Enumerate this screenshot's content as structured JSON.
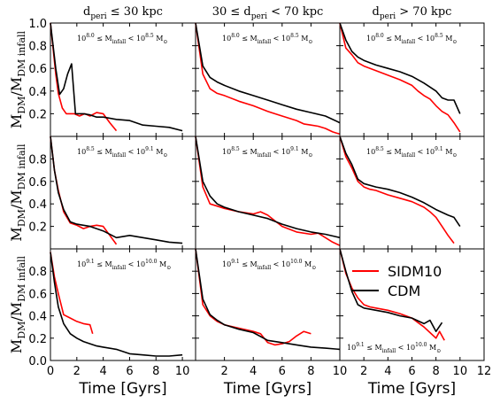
{
  "figure": {
    "xlabel": "Time [Gyrs]",
    "ylabel_main": "M",
    "ylabel_sub1": "DM",
    "ylabel_slash": "/M",
    "ylabel_sub2": "DM infall",
    "legend": [
      {
        "label": "SIDM10",
        "color": "#ff0000"
      },
      {
        "label": "CDM",
        "color": "#000000"
      }
    ]
  },
  "chart_data": {
    "type": "line",
    "layout": "3x3 grid",
    "xlim": [
      0,
      12
    ],
    "ylim": [
      0,
      1.0
    ],
    "columns": [
      {
        "pre": "d",
        "sub": "peri",
        "post": " ≤ 30 kpc"
      },
      {
        "pre": "30 ≤ d",
        "sub": "peri",
        "post": " < 70 kpc"
      },
      {
        "pre": "d",
        "sub": "peri",
        "post": " > 70 kpc"
      }
    ],
    "rows": [
      {
        "lo": "10",
        "lo_exp": "8.0",
        "hi": "10",
        "hi_exp": "8.5",
        "left_yticks": [
          "0.2",
          "0.4",
          "0.6",
          "0.8",
          "1.0"
        ]
      },
      {
        "lo": "10",
        "lo_exp": "8.5",
        "hi": "10",
        "hi_exp": "9.1",
        "left_yticks": [
          "0.2",
          "0.4",
          "0.6",
          "0.8"
        ]
      },
      {
        "lo": "10",
        "lo_exp": "9.1",
        "hi": "10",
        "hi_exp": "10.0",
        "left_yticks": [
          "0.0",
          "0.2",
          "0.4",
          "0.6",
          "0.8"
        ]
      }
    ],
    "mass_label": {
      "sep": " ≤ M",
      "sub": "infall",
      "mid": " < ",
      "unit": " M",
      "unit_sub": "⊙"
    },
    "xticks_by_column": [
      [
        "0",
        "2",
        "4",
        "6",
        "8",
        "10"
      ],
      [
        "2",
        "4",
        "6",
        "8",
        "10"
      ],
      [
        "2",
        "4",
        "6",
        "8",
        "10",
        "12"
      ]
    ],
    "series": [
      {
        "name": "SIDM10",
        "color": "#ff0000",
        "panels": [
          [
            [
              0,
              1.0
            ],
            [
              0.4,
              0.55
            ],
            [
              0.6,
              0.38
            ],
            [
              0.9,
              0.25
            ],
            [
              1.2,
              0.2
            ],
            [
              1.8,
              0.2
            ],
            [
              2.2,
              0.18
            ],
            [
              2.6,
              0.2
            ],
            [
              3.0,
              0.18
            ],
            [
              3.5,
              0.21
            ],
            [
              4.0,
              0.2
            ],
            [
              4.5,
              0.12
            ],
            [
              5.0,
              0.05
            ]
          ],
          [
            [
              0,
              1.0
            ],
            [
              0.5,
              0.55
            ],
            [
              1.0,
              0.42
            ],
            [
              1.5,
              0.38
            ],
            [
              2.0,
              0.36
            ],
            [
              3.0,
              0.31
            ],
            [
              4.0,
              0.27
            ],
            [
              5.0,
              0.22
            ],
            [
              6.0,
              0.18
            ],
            [
              7.0,
              0.14
            ],
            [
              7.5,
              0.11
            ],
            [
              8.0,
              0.1
            ],
            [
              8.5,
              0.09
            ],
            [
              9.0,
              0.07
            ],
            [
              9.5,
              0.04
            ],
            [
              10.0,
              0.02
            ]
          ],
          [
            [
              0,
              1.0
            ],
            [
              0.5,
              0.78
            ],
            [
              1.0,
              0.72
            ],
            [
              1.5,
              0.65
            ],
            [
              2.0,
              0.62
            ],
            [
              3.0,
              0.58
            ],
            [
              4.0,
              0.54
            ],
            [
              5.0,
              0.5
            ],
            [
              6.0,
              0.45
            ],
            [
              6.5,
              0.4
            ],
            [
              7.0,
              0.36
            ],
            [
              7.5,
              0.33
            ],
            [
              8.0,
              0.27
            ],
            [
              8.5,
              0.22
            ],
            [
              9.0,
              0.19
            ],
            [
              9.5,
              0.12
            ],
            [
              10.0,
              0.04
            ]
          ],
          [
            [
              0,
              1.0
            ],
            [
              0.3,
              0.7
            ],
            [
              0.6,
              0.52
            ],
            [
              1.0,
              0.33
            ],
            [
              1.5,
              0.23
            ],
            [
              2.0,
              0.21
            ],
            [
              2.5,
              0.18
            ],
            [
              3.0,
              0.2
            ],
            [
              3.5,
              0.21
            ],
            [
              4.0,
              0.2
            ],
            [
              4.5,
              0.12
            ],
            [
              5.0,
              0.04
            ]
          ],
          [
            [
              0,
              1.0
            ],
            [
              0.5,
              0.55
            ],
            [
              1.0,
              0.4
            ],
            [
              1.5,
              0.38
            ],
            [
              2.0,
              0.36
            ],
            [
              3.0,
              0.33
            ],
            [
              4.0,
              0.31
            ],
            [
              4.5,
              0.33
            ],
            [
              5.0,
              0.3
            ],
            [
              5.5,
              0.25
            ],
            [
              6.0,
              0.2
            ],
            [
              7.0,
              0.15
            ],
            [
              8.0,
              0.13
            ],
            [
              8.5,
              0.14
            ],
            [
              9.0,
              0.1
            ],
            [
              9.5,
              0.06
            ],
            [
              10.0,
              0.03
            ]
          ],
          [
            [
              0,
              1.0
            ],
            [
              0.5,
              0.82
            ],
            [
              1.0,
              0.72
            ],
            [
              1.5,
              0.6
            ],
            [
              2.0,
              0.55
            ],
            [
              2.5,
              0.53
            ],
            [
              3.0,
              0.52
            ],
            [
              4.0,
              0.48
            ],
            [
              5.0,
              0.45
            ],
            [
              6.0,
              0.42
            ],
            [
              7.0,
              0.37
            ],
            [
              7.5,
              0.33
            ],
            [
              8.0,
              0.28
            ],
            [
              8.5,
              0.2
            ],
            [
              9.0,
              0.12
            ],
            [
              9.5,
              0.05
            ]
          ],
          [
            [
              0,
              0.97
            ],
            [
              0.3,
              0.75
            ],
            [
              0.6,
              0.6
            ],
            [
              1.0,
              0.41
            ],
            [
              1.5,
              0.38
            ],
            [
              2.0,
              0.35
            ],
            [
              2.5,
              0.33
            ],
            [
              3.0,
              0.32
            ],
            [
              3.2,
              0.24
            ]
          ],
          [
            [
              0,
              1.0
            ],
            [
              0.5,
              0.5
            ],
            [
              1.0,
              0.4
            ],
            [
              1.5,
              0.35
            ],
            [
              2.0,
              0.32
            ],
            [
              3.0,
              0.29
            ],
            [
              4.0,
              0.26
            ],
            [
              4.5,
              0.24
            ],
            [
              5.0,
              0.16
            ],
            [
              5.5,
              0.14
            ],
            [
              6.0,
              0.15
            ],
            [
              6.5,
              0.17
            ],
            [
              7.0,
              0.22
            ],
            [
              7.5,
              0.26
            ],
            [
              8.0,
              0.24
            ]
          ],
          [
            [
              0,
              1.0
            ],
            [
              0.5,
              0.78
            ],
            [
              1.0,
              0.65
            ],
            [
              1.5,
              0.56
            ],
            [
              2.0,
              0.5
            ],
            [
              2.5,
              0.48
            ],
            [
              3.0,
              0.47
            ],
            [
              4.0,
              0.45
            ],
            [
              5.0,
              0.42
            ],
            [
              6.0,
              0.38
            ],
            [
              6.5,
              0.34
            ],
            [
              7.0,
              0.3
            ],
            [
              7.5,
              0.25
            ],
            [
              8.0,
              0.2
            ],
            [
              8.3,
              0.26
            ],
            [
              8.7,
              0.18
            ]
          ]
        ]
      },
      {
        "name": "CDM",
        "color": "#000000",
        "panels": [
          [
            [
              0,
              1.0
            ],
            [
              0.4,
              0.6
            ],
            [
              0.7,
              0.37
            ],
            [
              1.0,
              0.42
            ],
            [
              1.3,
              0.55
            ],
            [
              1.6,
              0.64
            ],
            [
              1.9,
              0.2
            ],
            [
              2.5,
              0.2
            ],
            [
              3.0,
              0.19
            ],
            [
              3.5,
              0.17
            ],
            [
              4.0,
              0.17
            ],
            [
              5.0,
              0.15
            ],
            [
              6.0,
              0.14
            ],
            [
              7.0,
              0.1
            ],
            [
              8.0,
              0.09
            ],
            [
              9.0,
              0.08
            ],
            [
              10.0,
              0.05
            ]
          ],
          [
            [
              0,
              1.0
            ],
            [
              0.5,
              0.62
            ],
            [
              1.0,
              0.52
            ],
            [
              1.5,
              0.48
            ],
            [
              2.0,
              0.45
            ],
            [
              3.0,
              0.4
            ],
            [
              4.0,
              0.36
            ],
            [
              5.0,
              0.32
            ],
            [
              6.0,
              0.28
            ],
            [
              7.0,
              0.24
            ],
            [
              8.0,
              0.21
            ],
            [
              9.0,
              0.18
            ],
            [
              10.0,
              0.12
            ]
          ],
          [
            [
              0,
              1.0
            ],
            [
              0.5,
              0.85
            ],
            [
              1.0,
              0.75
            ],
            [
              1.5,
              0.7
            ],
            [
              2.0,
              0.67
            ],
            [
              3.0,
              0.63
            ],
            [
              4.0,
              0.6
            ],
            [
              5.0,
              0.57
            ],
            [
              6.0,
              0.53
            ],
            [
              7.0,
              0.47
            ],
            [
              8.0,
              0.4
            ],
            [
              8.5,
              0.34
            ],
            [
              9.0,
              0.32
            ],
            [
              9.5,
              0.32
            ],
            [
              10.0,
              0.2
            ]
          ],
          [
            [
              0,
              1.0
            ],
            [
              0.3,
              0.7
            ],
            [
              0.6,
              0.5
            ],
            [
              1.0,
              0.35
            ],
            [
              1.5,
              0.24
            ],
            [
              2.0,
              0.22
            ],
            [
              3.0,
              0.2
            ],
            [
              4.0,
              0.16
            ],
            [
              5.0,
              0.1
            ],
            [
              6.0,
              0.12
            ],
            [
              7.0,
              0.1
            ],
            [
              8.0,
              0.08
            ],
            [
              9.0,
              0.06
            ],
            [
              10.0,
              0.05
            ]
          ],
          [
            [
              0,
              1.0
            ],
            [
              0.5,
              0.6
            ],
            [
              1.0,
              0.47
            ],
            [
              1.5,
              0.4
            ],
            [
              2.0,
              0.37
            ],
            [
              3.0,
              0.33
            ],
            [
              4.0,
              0.3
            ],
            [
              5.0,
              0.27
            ],
            [
              6.0,
              0.22
            ],
            [
              7.0,
              0.18
            ],
            [
              8.0,
              0.15
            ],
            [
              9.0,
              0.13
            ],
            [
              10.0,
              0.1
            ]
          ],
          [
            [
              0,
              1.0
            ],
            [
              0.5,
              0.85
            ],
            [
              1.0,
              0.75
            ],
            [
              1.5,
              0.62
            ],
            [
              2.0,
              0.58
            ],
            [
              3.0,
              0.55
            ],
            [
              4.0,
              0.53
            ],
            [
              5.0,
              0.5
            ],
            [
              6.0,
              0.46
            ],
            [
              7.0,
              0.41
            ],
            [
              8.0,
              0.35
            ],
            [
              9.0,
              0.3
            ],
            [
              9.5,
              0.28
            ],
            [
              10.0,
              0.2
            ]
          ],
          [
            [
              0,
              0.97
            ],
            [
              0.3,
              0.7
            ],
            [
              0.6,
              0.48
            ],
            [
              1.0,
              0.33
            ],
            [
              1.5,
              0.24
            ],
            [
              2.0,
              0.2
            ],
            [
              2.5,
              0.17
            ],
            [
              3.0,
              0.15
            ],
            [
              3.5,
              0.13
            ],
            [
              4.0,
              0.12
            ],
            [
              5.0,
              0.1
            ],
            [
              6.0,
              0.06
            ],
            [
              7.0,
              0.05
            ],
            [
              8.0,
              0.04
            ],
            [
              9.0,
              0.04
            ],
            [
              10.0,
              0.05
            ]
          ],
          [
            [
              0,
              1.0
            ],
            [
              0.5,
              0.55
            ],
            [
              1.0,
              0.41
            ],
            [
              1.5,
              0.36
            ],
            [
              2.0,
              0.32
            ],
            [
              3.0,
              0.28
            ],
            [
              4.0,
              0.25
            ],
            [
              5.0,
              0.18
            ],
            [
              6.0,
              0.16
            ],
            [
              7.0,
              0.14
            ],
            [
              8.0,
              0.12
            ],
            [
              9.0,
              0.11
            ],
            [
              10.0,
              0.1
            ]
          ],
          [
            [
              0,
              1.0
            ],
            [
              0.5,
              0.8
            ],
            [
              1.0,
              0.62
            ],
            [
              1.5,
              0.5
            ],
            [
              2.0,
              0.47
            ],
            [
              3.0,
              0.45
            ],
            [
              4.0,
              0.43
            ],
            [
              5.0,
              0.4
            ],
            [
              6.0,
              0.38
            ],
            [
              7.0,
              0.33
            ],
            [
              7.5,
              0.36
            ],
            [
              8.0,
              0.26
            ],
            [
              8.5,
              0.34
            ]
          ]
        ]
      }
    ]
  }
}
